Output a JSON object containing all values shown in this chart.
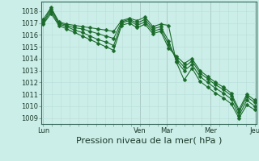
{
  "background_color": "#cceee8",
  "grid_color_minor": "#b8ddd8",
  "grid_color_major": "#99ccbb",
  "line_color": "#1a6b2a",
  "markersize": 2.5,
  "linewidth": 0.8,
  "ylim": [
    1008.5,
    1018.8
  ],
  "yticks": [
    1009,
    1010,
    1011,
    1012,
    1013,
    1014,
    1015,
    1016,
    1017,
    1018
  ],
  "xlabel": "Pression niveau de la mer( hPa )",
  "xlabel_fontsize": 8,
  "tick_fontsize": 6,
  "xtick_labels": [
    "Lun",
    "Ven",
    "Mar",
    "Mer",
    "Jeu"
  ],
  "xtick_positions": [
    0,
    11,
    14,
    19,
    24
  ],
  "series": [
    [
      1017.3,
      1018.3,
      1017.1,
      1016.9,
      1016.8,
      1016.7,
      1016.6,
      1016.5,
      1016.4,
      1016.3,
      1017.2,
      1017.4,
      1017.2,
      1017.5,
      1016.7,
      1016.9,
      1016.8,
      1013.7,
      1012.2,
      1013.2,
      1012.1,
      1011.6,
      1011.1,
      1010.7,
      1010.2,
      1009.0,
      1010.1,
      1009.7
    ],
    [
      1017.1,
      1018.2,
      1017.0,
      1016.8,
      1016.6,
      1016.5,
      1016.3,
      1016.1,
      1015.9,
      1015.7,
      1017.1,
      1017.3,
      1017.0,
      1017.3,
      1016.5,
      1016.7,
      1015.5,
      1013.8,
      1013.0,
      1013.5,
      1012.5,
      1012.0,
      1011.5,
      1011.1,
      1010.6,
      1009.2,
      1010.5,
      1010.0
    ],
    [
      1017.0,
      1018.0,
      1016.9,
      1016.7,
      1016.4,
      1016.2,
      1015.9,
      1015.6,
      1015.4,
      1015.1,
      1017.0,
      1017.2,
      1016.8,
      1017.1,
      1016.3,
      1016.5,
      1015.2,
      1014.0,
      1013.3,
      1013.8,
      1012.8,
      1012.3,
      1011.8,
      1011.4,
      1010.9,
      1009.5,
      1010.8,
      1010.3
    ],
    [
      1016.9,
      1017.8,
      1016.8,
      1016.5,
      1016.2,
      1015.9,
      1015.6,
      1015.3,
      1015.0,
      1014.7,
      1016.8,
      1017.0,
      1016.6,
      1016.9,
      1016.1,
      1016.3,
      1014.9,
      1014.2,
      1013.6,
      1014.0,
      1013.0,
      1012.5,
      1012.0,
      1011.6,
      1011.1,
      1009.7,
      1011.0,
      1010.5
    ]
  ],
  "n_points": 28,
  "vlines": [
    0,
    11,
    14,
    19,
    24
  ]
}
